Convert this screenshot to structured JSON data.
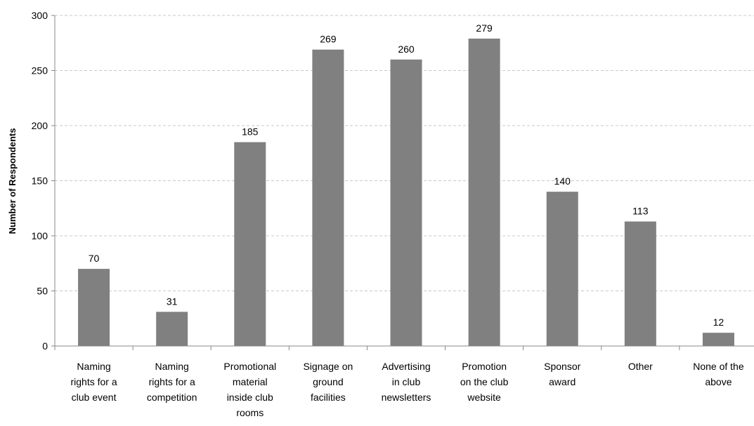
{
  "chart_data": {
    "type": "bar",
    "title": "",
    "xlabel": "",
    "ylabel": "Number of Respondents",
    "ylim": [
      0,
      300
    ],
    "yticks": [
      0,
      50,
      100,
      150,
      200,
      250,
      300
    ],
    "grid": true,
    "categories": [
      [
        "Naming",
        "rights for a",
        "club event"
      ],
      [
        "Naming",
        "rights for a",
        "competition"
      ],
      [
        "Promotional",
        "material",
        "inside club",
        "rooms"
      ],
      [
        "Signage on",
        "ground",
        "facilities"
      ],
      [
        "Advertising",
        "in club",
        "newsletters"
      ],
      [
        "Promotion",
        "on the club",
        "website"
      ],
      [
        "Sponsor",
        "award"
      ],
      [
        "Other"
      ],
      [
        "None of the",
        "above"
      ]
    ],
    "values": [
      70,
      31,
      185,
      269,
      260,
      279,
      140,
      113,
      12
    ],
    "bar_color": "#808080",
    "grid_color": "#c8c8c8"
  }
}
